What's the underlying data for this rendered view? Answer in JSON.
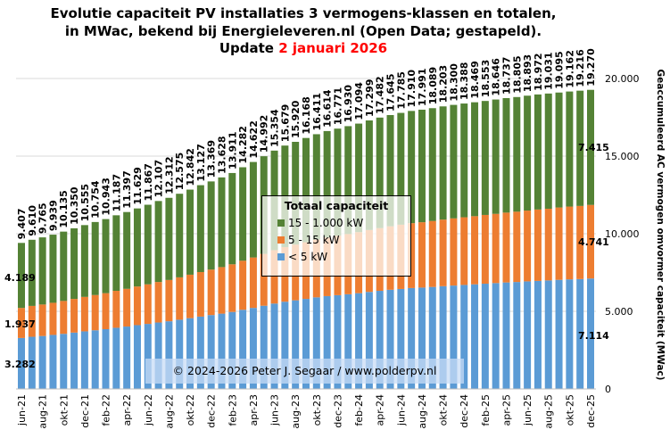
{
  "title": {
    "line1": "Evolutie capaciteit PV installaties  3 vermogens-klassen en totalen,",
    "line2": "in MWac, bekend bij Energieleveren.nl (Open Data; gestapeld).",
    "line3_prefix": "Update ",
    "line3_date": "2 januari 2026"
  },
  "colors": {
    "green": "#548235",
    "orange": "#ED7D31",
    "blue": "#5B9BD5",
    "date": "#FF0000"
  },
  "chart_data": {
    "type": "bar",
    "stacked": true,
    "ylabel": "Geaccumuleerd AC vermogen omvormer capaciteit (MWac)",
    "ylim": [
      0,
      20000
    ],
    "yticks": [
      "0",
      "5.000",
      "10.000",
      "15.000",
      "20.000"
    ],
    "y_axis_side": "right",
    "grid": true,
    "legend": {
      "title": "Totaal capaciteit",
      "placement": "center",
      "entries": [
        "15 - 1.000 kW",
        "5 - 15 kW",
        "< 5 kW"
      ]
    },
    "categories": [
      "jun-21",
      "jul-21",
      "aug-21",
      "sep-21",
      "okt-21",
      "nov-21",
      "dec-21",
      "jan-22",
      "feb-22",
      "mrt-22",
      "apr-22",
      "mei-22",
      "jun-22",
      "jul-22",
      "aug-22",
      "sep-22",
      "okt-22",
      "nov-22",
      "dec-22",
      "jan-23",
      "feb-23",
      "mrt-23",
      "apr-23",
      "mei-23",
      "jun-23",
      "jul-23",
      "aug-23",
      "sep-23",
      "okt-23",
      "nov-23",
      "dec-23",
      "jan-24",
      "feb-24",
      "mrt-24",
      "apr-24",
      "mei-24",
      "jun-24",
      "jul-24",
      "aug-24",
      "sep-24",
      "okt-24",
      "nov-24",
      "dec-24",
      "jan-25",
      "feb-25",
      "mrt-25",
      "apr-25",
      "mei-25",
      "jun-25",
      "jul-25",
      "aug-25",
      "sep-25",
      "okt-25",
      "nov-25",
      "dec-25"
    ],
    "x_tick_labels": [
      "jun-21",
      "aug-21",
      "okt-21",
      "dec-21",
      "feb-22",
      "apr-22",
      "jun-22",
      "aug-22",
      "okt-22",
      "dec-22",
      "feb-23",
      "apr-23",
      "jun-23",
      "aug-23",
      "okt-23",
      "dec-23",
      "feb-24",
      "apr-24",
      "jun-24",
      "aug-24",
      "okt-24",
      "dec-24",
      "feb-25",
      "apr-25",
      "jun-25",
      "aug-25",
      "okt-25",
      "dec-25"
    ],
    "totals": [
      9407,
      9610,
      9765,
      9939,
      10135,
      10350,
      10555,
      10754,
      10943,
      11187,
      11397,
      11629,
      11867,
      12107,
      12312,
      12575,
      12842,
      13127,
      13369,
      13628,
      13911,
      14282,
      14622,
      14992,
      15354,
      15679,
      15920,
      16168,
      16411,
      16614,
      16771,
      16930,
      17094,
      17299,
      17482,
      17645,
      17785,
      17910,
      17991,
      18089,
      18203,
      18300,
      18388,
      18469,
      18553,
      18646,
      18737,
      18805,
      18893,
      18972,
      19031,
      19095,
      19162,
      19216,
      19270
    ],
    "series": [
      {
        "name": "< 5 kW",
        "color": "#5B9BD5",
        "values": [
          3282,
          3360,
          3410,
          3480,
          3550,
          3630,
          3710,
          3780,
          3850,
          3940,
          4020,
          4110,
          4190,
          4280,
          4360,
          4460,
          4560,
          4660,
          4760,
          4850,
          4960,
          5100,
          5220,
          5360,
          5500,
          5620,
          5710,
          5800,
          5900,
          5980,
          6040,
          6100,
          6170,
          6250,
          6320,
          6390,
          6440,
          6500,
          6530,
          6570,
          6620,
          6660,
          6700,
          6740,
          6780,
          6820,
          6860,
          6890,
          6930,
          6960,
          6990,
          7030,
          7060,
          7080,
          7114
        ]
      },
      {
        "name": "5 - 15 kW",
        "color": "#ED7D31",
        "values": [
          1937,
          1990,
          2030,
          2070,
          2120,
          2170,
          2220,
          2270,
          2320,
          2380,
          2430,
          2490,
          2550,
          2610,
          2660,
          2730,
          2800,
          2870,
          2930,
          3000,
          3070,
          3160,
          3250,
          3340,
          3440,
          3520,
          3590,
          3650,
          3720,
          3780,
          3830,
          3880,
          3930,
          3990,
          4040,
          4090,
          4140,
          4180,
          4210,
          4250,
          4290,
          4330,
          4360,
          4390,
          4430,
          4460,
          4500,
          4530,
          4560,
          4600,
          4620,
          4660,
          4690,
          4710,
          4741
        ]
      },
      {
        "name": "15 - 1.000 kW",
        "color": "#548235",
        "values": [
          4189,
          4260,
          4325,
          4389,
          4465,
          4550,
          4625,
          4704,
          4773,
          4867,
          4947,
          5029,
          5127,
          5217,
          5292,
          5385,
          5482,
          5597,
          5679,
          5778,
          5881,
          6022,
          6152,
          6292,
          6414,
          6539,
          6620,
          6718,
          6791,
          6854,
          6901,
          6950,
          6994,
          7059,
          7122,
          7165,
          7205,
          7230,
          7251,
          7269,
          7293,
          7310,
          7328,
          7339,
          7343,
          7366,
          7377,
          7385,
          7403,
          7412,
          7421,
          7405,
          7412,
          7426,
          7415
        ]
      }
    ],
    "annotations": {
      "first": {
        "blue": "3.282",
        "orange": "1.937",
        "green": "4.189"
      },
      "last": {
        "blue": "7.114",
        "orange": "4.741",
        "green": "7.415"
      }
    }
  },
  "copyright": "© 2024-2026  Peter J. Segaar / www.polderpv.nl"
}
